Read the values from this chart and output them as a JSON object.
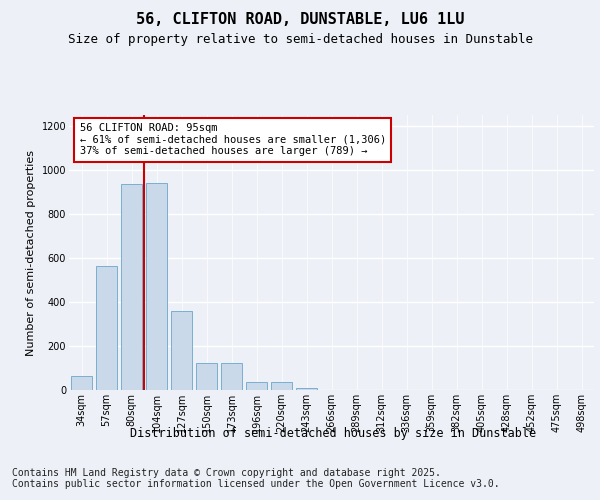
{
  "title": "56, CLIFTON ROAD, DUNSTABLE, LU6 1LU",
  "subtitle": "Size of property relative to semi-detached houses in Dunstable",
  "xlabel": "Distribution of semi-detached houses by size in Dunstable",
  "ylabel": "Number of semi-detached properties",
  "categories": [
    "34sqm",
    "57sqm",
    "80sqm",
    "104sqm",
    "127sqm",
    "150sqm",
    "173sqm",
    "196sqm",
    "220sqm",
    "243sqm",
    "266sqm",
    "289sqm",
    "312sqm",
    "336sqm",
    "359sqm",
    "382sqm",
    "405sqm",
    "428sqm",
    "452sqm",
    "475sqm",
    "498sqm"
  ],
  "values": [
    65,
    565,
    935,
    940,
    360,
    125,
    125,
    35,
    35,
    10,
    0,
    0,
    0,
    0,
    0,
    0,
    0,
    0,
    0,
    0,
    0
  ],
  "bar_color": "#c9d9ea",
  "bar_edge_color": "#7aafcf",
  "vline_color": "#cc0000",
  "annotation_text": "56 CLIFTON ROAD: 95sqm\n← 61% of semi-detached houses are smaller (1,306)\n37% of semi-detached houses are larger (789) →",
  "annotation_box_color": "#cc0000",
  "ylim": [
    0,
    1250
  ],
  "yticks": [
    0,
    200,
    400,
    600,
    800,
    1000,
    1200
  ],
  "footer": "Contains HM Land Registry data © Crown copyright and database right 2025.\nContains public sector information licensed under the Open Government Licence v3.0.",
  "bg_color": "#edf1f7",
  "plot_bg_color": "#edf1f7",
  "grid_color": "#ffffff",
  "title_fontsize": 11,
  "subtitle_fontsize": 9,
  "footer_fontsize": 7,
  "ylabel_fontsize": 8,
  "xlabel_fontsize": 8.5,
  "annot_fontsize": 7.5,
  "tick_fontsize": 7
}
